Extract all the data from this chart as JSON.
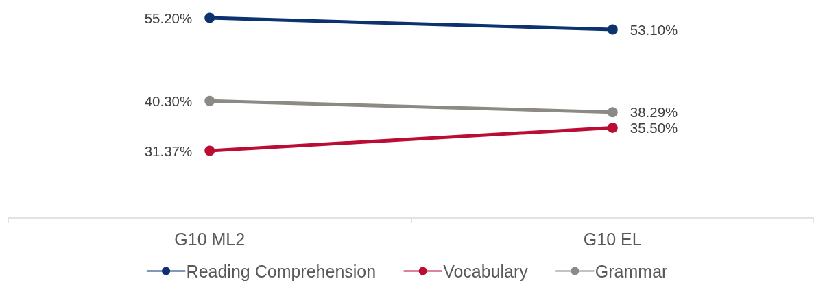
{
  "chart_data": {
    "type": "line",
    "categories": [
      "G10 ML2",
      "G10 EL"
    ],
    "series": [
      {
        "name": "Reading Comprehension",
        "color": "#0d3270",
        "values": [
          55.2,
          53.1
        ],
        "value_labels": [
          "55.20%",
          "53.10%"
        ]
      },
      {
        "name": "Vocabulary",
        "color": "#bb0d33",
        "values": [
          31.37,
          35.5
        ],
        "value_labels": [
          "31.37%",
          "35.50%"
        ]
      },
      {
        "name": "Grammar",
        "color": "#8d8984",
        "values": [
          40.3,
          38.29
        ],
        "value_labels": [
          "40.30%",
          "38.29%"
        ]
      }
    ],
    "tick_labels": "x",
    "legend": "bottom",
    "marker": "circle",
    "line_style": "solid"
  }
}
